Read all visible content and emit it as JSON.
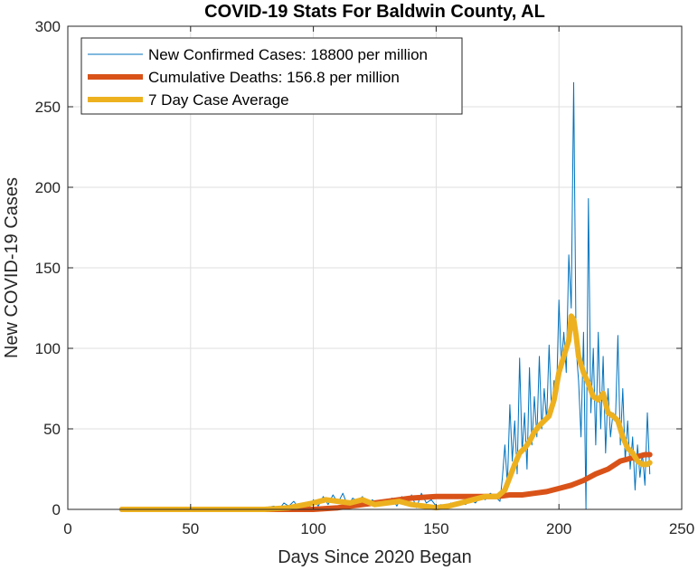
{
  "chart_data": {
    "type": "line",
    "title": "COVID-19 Stats For Baldwin County, AL",
    "xlabel": "Days Since 2020 Began",
    "ylabel": "New COVID-19 Cases",
    "xlim": [
      0,
      250
    ],
    "ylim": [
      0,
      300
    ],
    "xticks": [
      0,
      50,
      100,
      150,
      200,
      250
    ],
    "yticks": [
      0,
      50,
      100,
      150,
      200,
      250,
      300
    ],
    "grid": true,
    "legend_position": "top-left",
    "series": [
      {
        "name": "New Confirmed Cases: 18800 per million",
        "color": "#0072BD",
        "x": [
          22,
          30,
          40,
          50,
          60,
          70,
          75,
          80,
          84,
          86,
          88,
          90,
          92,
          94,
          96,
          98,
          100,
          102,
          104,
          106,
          108,
          110,
          112,
          114,
          116,
          118,
          120,
          122,
          124,
          126,
          128,
          130,
          132,
          134,
          136,
          138,
          140,
          142,
          144,
          146,
          148,
          150,
          152,
          154,
          156,
          158,
          160,
          162,
          164,
          166,
          168,
          170,
          172,
          174,
          176,
          177,
          178,
          179,
          180,
          181,
          182,
          183,
          184,
          185,
          186,
          187,
          188,
          189,
          190,
          191,
          192,
          193,
          194,
          195,
          196,
          197,
          198,
          199,
          200,
          201,
          202,
          203,
          204,
          205,
          206,
          207,
          208,
          209,
          210,
          211,
          212,
          213,
          214,
          215,
          216,
          217,
          218,
          219,
          220,
          221,
          222,
          223,
          224,
          225,
          226,
          227,
          228,
          229,
          230,
          231,
          232,
          233,
          234,
          235,
          236,
          237
        ],
        "values": [
          0,
          0,
          0,
          0,
          0,
          0,
          0,
          1,
          2,
          0,
          4,
          2,
          5,
          1,
          3,
          0,
          6,
          2,
          8,
          3,
          9,
          4,
          10,
          2,
          7,
          5,
          8,
          2,
          6,
          3,
          5,
          4,
          7,
          2,
          8,
          3,
          9,
          1,
          10,
          4,
          6,
          2,
          3,
          1,
          4,
          2,
          5,
          3,
          6,
          4,
          8,
          6,
          10,
          8,
          5,
          20,
          40,
          15,
          65,
          30,
          55,
          22,
          94,
          35,
          60,
          25,
          88,
          40,
          70,
          45,
          95,
          50,
          75,
          55,
          102,
          60,
          80,
          70,
          130,
          90,
          110,
          85,
          158,
          125,
          265,
          100,
          80,
          45,
          110,
          0,
          193,
          60,
          100,
          40,
          110,
          50,
          95,
          35,
          75,
          45,
          60,
          55,
          108,
          40,
          75,
          30,
          55,
          25,
          45,
          12,
          40,
          20,
          35,
          15,
          60,
          22
        ]
      },
      {
        "name": "Cumulative Deaths: 156.8 per million",
        "color": "#D95319",
        "x": [
          22,
          80,
          100,
          110,
          120,
          130,
          140,
          150,
          160,
          170,
          175,
          180,
          185,
          190,
          195,
          200,
          205,
          210,
          215,
          220,
          225,
          230,
          235,
          237
        ],
        "values": [
          0,
          0,
          0,
          1,
          3,
          5,
          7,
          8,
          8,
          8,
          8,
          9,
          9,
          10,
          11,
          13,
          15,
          18,
          22,
          25,
          30,
          32,
          34,
          34
        ]
      },
      {
        "name": "7 Day Case Average",
        "color": "#EDB120",
        "x": [
          22,
          60,
          80,
          90,
          100,
          105,
          110,
          115,
          120,
          125,
          130,
          135,
          140,
          145,
          150,
          155,
          160,
          165,
          170,
          175,
          178,
          180,
          182,
          184,
          186,
          188,
          190,
          192,
          194,
          196,
          198,
          200,
          202,
          204,
          205,
          206,
          207,
          208,
          210,
          212,
          214,
          216,
          218,
          220,
          222,
          224,
          226,
          228,
          230,
          232,
          234,
          236,
          237
        ],
        "values": [
          0,
          0,
          0,
          1,
          4,
          6,
          5,
          4,
          6,
          3,
          4,
          5,
          3,
          2,
          1,
          2,
          4,
          6,
          8,
          8,
          12,
          20,
          28,
          35,
          38,
          42,
          48,
          52,
          55,
          58,
          68,
          85,
          95,
          105,
          120,
          118,
          108,
          95,
          85,
          78,
          70,
          68,
          72,
          60,
          58,
          55,
          45,
          38,
          35,
          30,
          28,
          28,
          29
        ]
      }
    ]
  }
}
